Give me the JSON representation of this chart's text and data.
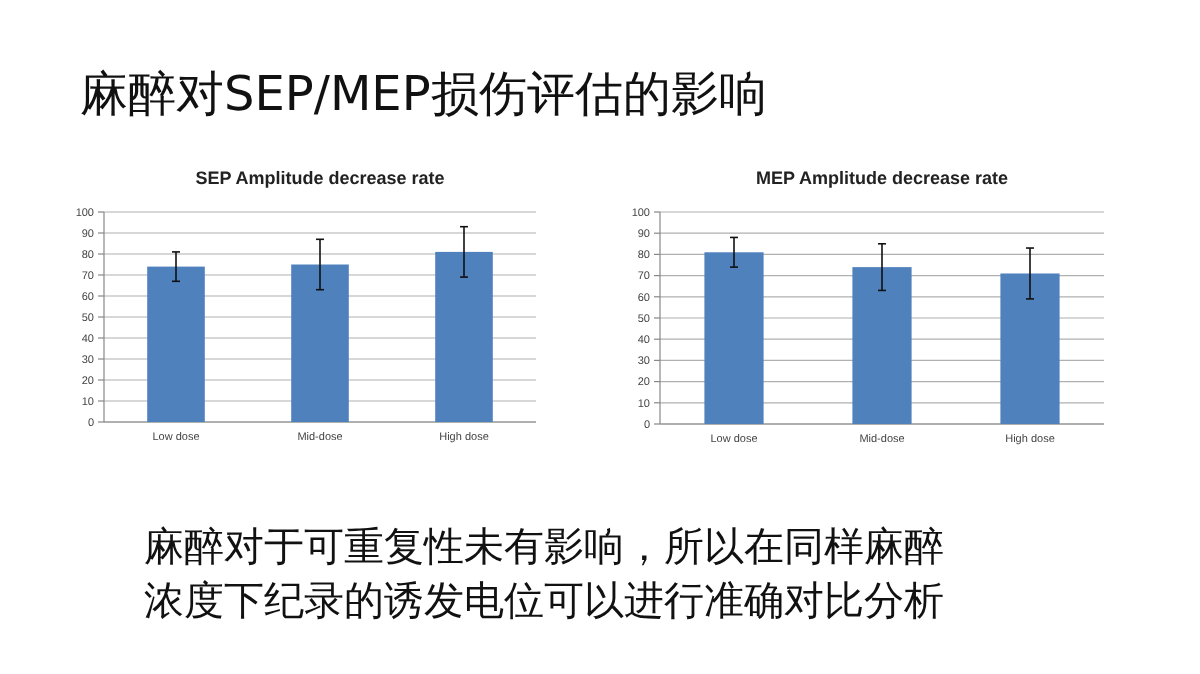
{
  "chart_data": [
    {
      "type": "bar",
      "title": "SEP Amplitude decrease rate",
      "categories": [
        "Low dose",
        "Mid-dose",
        "High dose"
      ],
      "values": [
        74,
        75,
        81
      ],
      "errors": [
        7,
        12,
        12
      ],
      "color": "#4f81bd",
      "ylim": [
        0,
        100
      ],
      "yticks": [
        0,
        10,
        20,
        30,
        40,
        50,
        60,
        70,
        80,
        90,
        100
      ],
      "grid": "y"
    },
    {
      "type": "bar",
      "title": "MEP Amplitude decrease rate",
      "categories": [
        "Low dose",
        "Mid-dose",
        "High dose"
      ],
      "values": [
        81,
        74,
        71
      ],
      "errors": [
        7,
        11,
        12
      ],
      "color": "#4f81bd",
      "ylim": [
        0,
        100
      ],
      "yticks": [
        0,
        10,
        20,
        30,
        40,
        50,
        60,
        70,
        80,
        90,
        100
      ],
      "grid": "y"
    },
    {
      "type": "other",
      "title": "麻醉对SEP/MEP损伤评估的影响",
      "annotations": [
        "麻醉对于可重复性未有影响，所以在同样麻醉",
        "浓度下纪录的诱发电位可以进行准确对比分析"
      ]
    }
  ]
}
